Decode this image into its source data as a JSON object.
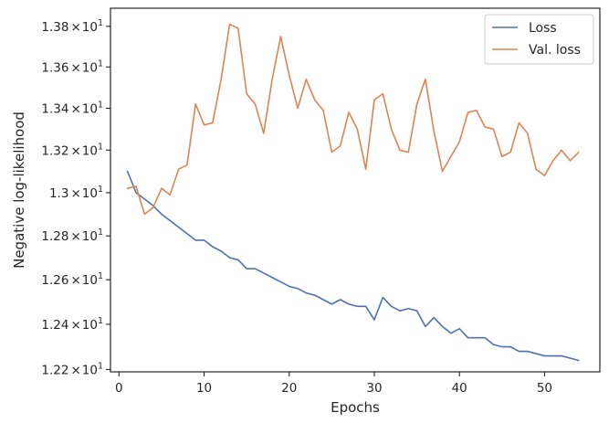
{
  "chart_data": {
    "type": "line",
    "xlabel": "Epochs",
    "ylabel": "Negative log-likelihood",
    "xlim": [
      -1,
      56.5
    ],
    "ylim": [
      12.19,
      13.89
    ],
    "yscale": "log",
    "grid": false,
    "legend_position": "top-right",
    "x_ticks": [
      {
        "value": 0,
        "label": "0"
      },
      {
        "value": 10,
        "label": "10"
      },
      {
        "value": 20,
        "label": "20"
      },
      {
        "value": 30,
        "label": "30"
      },
      {
        "value": 40,
        "label": "40"
      },
      {
        "value": 50,
        "label": "50"
      }
    ],
    "y_ticks": [
      {
        "value": 12.2,
        "mantissa": "1.22",
        "times": "×",
        "base": "10",
        "exponent": "1"
      },
      {
        "value": 12.4,
        "mantissa": "1.24",
        "times": "×",
        "base": "10",
        "exponent": "1"
      },
      {
        "value": 12.6,
        "mantissa": "1.26",
        "times": "×",
        "base": "10",
        "exponent": "1"
      },
      {
        "value": 12.8,
        "mantissa": "1.28",
        "times": "×",
        "base": "10",
        "exponent": "1"
      },
      {
        "value": 13.0,
        "mantissa": "1.3",
        "times": "×",
        "base": "10",
        "exponent": "1"
      },
      {
        "value": 13.2,
        "mantissa": "1.32",
        "times": "×",
        "base": "10",
        "exponent": "1"
      },
      {
        "value": 13.4,
        "mantissa": "1.34",
        "times": "×",
        "base": "10",
        "exponent": "1"
      },
      {
        "value": 13.6,
        "mantissa": "1.36",
        "times": "×",
        "base": "10",
        "exponent": "1"
      },
      {
        "value": 13.8,
        "mantissa": "1.38",
        "times": "×",
        "base": "10",
        "exponent": "1"
      }
    ],
    "x": [
      1,
      2,
      3,
      4,
      5,
      6,
      7,
      8,
      9,
      10,
      11,
      12,
      13,
      14,
      15,
      16,
      17,
      18,
      19,
      20,
      21,
      22,
      23,
      24,
      25,
      26,
      27,
      28,
      29,
      30,
      31,
      32,
      33,
      34,
      35,
      36,
      37,
      38,
      39,
      40,
      41,
      42,
      43,
      44,
      45,
      46,
      47,
      48,
      49,
      50,
      51,
      52,
      53,
      54
    ],
    "series": [
      {
        "name": "Loss",
        "color": "#4c72b0",
        "values": [
          13.1,
          13.0,
          12.97,
          12.94,
          12.9,
          12.87,
          12.84,
          12.81,
          12.78,
          12.78,
          12.75,
          12.73,
          12.7,
          12.69,
          12.65,
          12.65,
          12.63,
          12.61,
          12.59,
          12.57,
          12.56,
          12.54,
          12.53,
          12.51,
          12.49,
          12.51,
          12.49,
          12.48,
          12.48,
          12.42,
          12.52,
          12.48,
          12.46,
          12.47,
          12.46,
          12.39,
          12.43,
          12.39,
          12.36,
          12.38,
          12.34,
          12.34,
          12.34,
          12.31,
          12.3,
          12.3,
          12.28,
          12.28,
          12.27,
          12.26,
          12.26,
          12.26,
          12.25,
          12.24
        ]
      },
      {
        "name": "Val. loss",
        "color": "#dd8452",
        "values": [
          13.02,
          13.03,
          12.9,
          12.93,
          13.02,
          12.99,
          13.11,
          13.13,
          13.42,
          13.32,
          13.33,
          13.54,
          13.81,
          13.79,
          13.47,
          13.42,
          13.28,
          13.54,
          13.75,
          13.56,
          13.4,
          13.54,
          13.44,
          13.39,
          13.19,
          13.22,
          13.38,
          13.3,
          13.11,
          13.44,
          13.47,
          13.3,
          13.2,
          13.19,
          13.42,
          13.54,
          13.29,
          13.1,
          13.17,
          13.24,
          13.38,
          13.39,
          13.31,
          13.3,
          13.17,
          13.19,
          13.33,
          13.28,
          13.11,
          13.08,
          13.15,
          13.2,
          13.15,
          13.19
        ]
      }
    ]
  }
}
